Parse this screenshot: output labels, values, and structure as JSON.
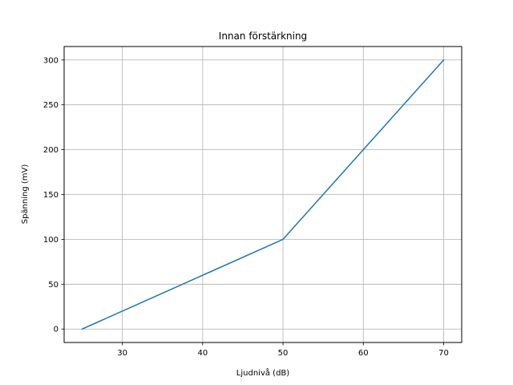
{
  "chart_data": {
    "type": "line",
    "title": "Innan förstärkning",
    "xlabel": "Ljudnivå (dB)",
    "ylabel": "Spänning (mV)",
    "xlim": [
      22.75,
      72.25
    ],
    "ylim": [
      -15,
      315
    ],
    "xticks": [
      30,
      40,
      50,
      60,
      70
    ],
    "yticks": [
      0,
      50,
      100,
      150,
      200,
      250,
      300
    ],
    "grid": true,
    "series": [
      {
        "color": "#1f77b4",
        "x": [
          25,
          50,
          70
        ],
        "y": [
          0,
          100,
          300
        ]
      }
    ]
  }
}
